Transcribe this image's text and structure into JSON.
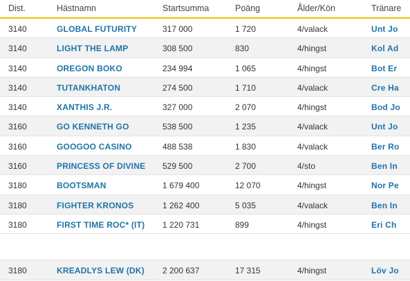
{
  "columns": {
    "dist": "Dist.",
    "name": "Hästnamn",
    "sum": "Startsumma",
    "points": "Poäng",
    "age": "Ålder/Kön",
    "trainer": "Tränare"
  },
  "rows": [
    {
      "dist": "3140",
      "name": "GLOBAL FUTURITY",
      "sum": "317 000",
      "points": "1 720",
      "age": "4/valack",
      "trainer": "Unt Jo"
    },
    {
      "dist": "3140",
      "name": "LIGHT THE LAMP",
      "sum": "308 500",
      "points": "830",
      "age": "4/hingst",
      "trainer": "Kol Ad"
    },
    {
      "dist": "3140",
      "name": "OREGON BOKO",
      "sum": "234 994",
      "points": "1 065",
      "age": "4/hingst",
      "trainer": "Bot Er"
    },
    {
      "dist": "3140",
      "name": "TUTANKHATON",
      "sum": "274 500",
      "points": "1 710",
      "age": "4/valack",
      "trainer": "Cre Ha"
    },
    {
      "dist": "3140",
      "name": "XANTHIS J.R.",
      "sum": "327 000",
      "points": "2 070",
      "age": "4/hingst",
      "trainer": "Bod Jo"
    },
    {
      "dist": "3160",
      "name": "GO KENNETH GO",
      "sum": "538 500",
      "points": "1 235",
      "age": "4/valack",
      "trainer": "Unt Jo"
    },
    {
      "dist": "3160",
      "name": "GOOGOO CASINO",
      "sum": "488 538",
      "points": "1 830",
      "age": "4/valack",
      "trainer": "Ber Ro"
    },
    {
      "dist": "3160",
      "name": "PRINCESS OF DIVINE",
      "sum": "529 500",
      "points": "2 700",
      "age": "4/sto",
      "trainer": "Ben In"
    },
    {
      "dist": "3180",
      "name": "BOOTSMAN",
      "sum": "1 679 400",
      "points": "12 070",
      "age": "4/hingst",
      "trainer": "Nor Pe"
    },
    {
      "dist": "3180",
      "name": "FIGHTER KRONOS",
      "sum": "1 262 400",
      "points": "5 035",
      "age": "4/valack",
      "trainer": "Ben In"
    },
    {
      "dist": "3180",
      "name": "FIRST TIME ROC* (IT)",
      "sum": "1 220 731",
      "points": "899",
      "age": "4/hingst",
      "trainer": "Eri Ch"
    },
    {
      "dist": "3180",
      "name": "KREADLYS LEW (DK)",
      "sum": "2 200 637",
      "points": "17 315",
      "age": "4/hingst",
      "trainer": "Löv Jo"
    }
  ]
}
